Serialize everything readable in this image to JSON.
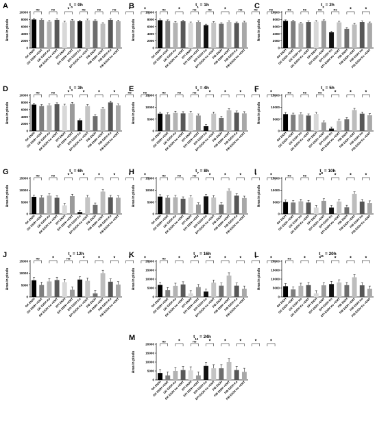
{
  "figure": {
    "y_axis_label": "Area in pixels",
    "category_labels": [
      "GK EtOH",
      "GK EtOH +EMT",
      "GK EtOH Ko",
      "GK EtOH Ko +EMT",
      "EPI EtOH",
      "EPI EtOH +EMT",
      "EPI EtOH Ko",
      "EPI EtOH Ko +EMT",
      "FIB EtOH",
      "FIB EtOH +EMT",
      "FIB EtOH Ko",
      "FIB EtOH Ko +EMT"
    ]
  },
  "chart_data": [
    {
      "type": "bar",
      "panel": "A",
      "title": "t0 = 0h",
      "title_parts": {
        "base": "t",
        "sub": "0",
        "rest": " = 0h"
      },
      "ylabel": "Area in pixels",
      "ylim": [
        0,
        10000
      ],
      "yticks": [
        0,
        2000,
        4000,
        6000,
        8000,
        10000
      ],
      "values": [
        8000,
        7900,
        7400,
        7900,
        7200,
        7700,
        7500,
        7800,
        7600,
        6800,
        7900,
        7500
      ],
      "errors": [
        300,
        300,
        300,
        300,
        300,
        300,
        300,
        300,
        300,
        300,
        300,
        300
      ],
      "annotations": [
        "ns",
        "ns",
        "*",
        "ns",
        "ns",
        "ns",
        "*",
        "*"
      ]
    },
    {
      "type": "bar",
      "panel": "B",
      "title": "t1 = 1h",
      "title_parts": {
        "base": "t",
        "sub": "1",
        "rest": " = 1h"
      },
      "ylabel": "Area in pixels",
      "ylim": [
        0,
        10000
      ],
      "yticks": [
        0,
        2000,
        4000,
        6000,
        8000,
        10000
      ],
      "values": [
        7800,
        7600,
        7100,
        7500,
        7000,
        7300,
        6400,
        7100,
        6800,
        7300,
        7000,
        7200
      ],
      "errors": [
        300,
        300,
        300,
        300,
        300,
        300,
        300,
        300,
        300,
        300,
        300,
        300
      ],
      "annotations": [
        "ns",
        "*",
        "ns",
        "ns",
        "*",
        "ns",
        "ns",
        "ns"
      ]
    },
    {
      "type": "bar",
      "panel": "C",
      "title": "t2 = 2h",
      "title_parts": {
        "base": "t",
        "sub": "2",
        "rest": " = 2h"
      },
      "ylabel": "Area in pixels",
      "ylim": [
        0,
        10000
      ],
      "yticks": [
        0,
        2000,
        4000,
        6000,
        8000,
        10000
      ],
      "values": [
        7600,
        7500,
        6900,
        7300,
        7400,
        7600,
        4400,
        7200,
        5400,
        6600,
        7300,
        7000
      ],
      "errors": [
        300,
        300,
        300,
        300,
        300,
        300,
        300,
        300,
        300,
        300,
        300,
        300
      ],
      "annotations": [
        "ns",
        "ns",
        "ns",
        "ns",
        "*",
        "*",
        "*",
        "ns"
      ]
    },
    {
      "type": "bar",
      "panel": "D",
      "title": "t3 = 3h",
      "title_parts": {
        "base": "t",
        "sub": "3",
        "rest": " = 3h"
      },
      "ylabel": "Area in pixels",
      "ylim": [
        0,
        10000
      ],
      "yticks": [
        0,
        2000,
        4000,
        6000,
        8000,
        10000
      ],
      "values": [
        7400,
        7000,
        7200,
        7500,
        7100,
        7600,
        3000,
        7000,
        4200,
        6200,
        8000,
        7200
      ],
      "errors": [
        400,
        400,
        400,
        400,
        400,
        400,
        400,
        400,
        400,
        400,
        400,
        400
      ],
      "annotations": [
        "ns",
        "ns",
        "*",
        "*",
        "*",
        "*",
        "ns",
        "ns"
      ]
    },
    {
      "type": "bar",
      "panel": "E",
      "title": "t4 = 4h",
      "title_parts": {
        "base": "t",
        "sub": "4",
        "rest": " = 4h"
      },
      "ylabel": "Area in pixels",
      "ylim": [
        0,
        15000
      ],
      "yticks": [
        0,
        5000,
        10000,
        15000
      ],
      "values": [
        7300,
        7000,
        7600,
        7400,
        7500,
        6500,
        2000,
        7300,
        5500,
        8700,
        7700,
        7400
      ],
      "errors": [
        700,
        700,
        700,
        700,
        700,
        700,
        700,
        700,
        700,
        700,
        700,
        700
      ],
      "annotations": [
        "ns",
        "ns",
        "ns",
        "*",
        "*",
        "*",
        "*",
        "*"
      ]
    },
    {
      "type": "bar",
      "panel": "F",
      "title": "t5 = 5h",
      "title_parts": {
        "base": "t",
        "sub": "5",
        "rest": " = 5h"
      },
      "ylabel": "Area in pixels",
      "ylim": [
        0,
        15000
      ],
      "yticks": [
        0,
        5000,
        10000,
        15000
      ],
      "values": [
        7100,
        6800,
        7000,
        6500,
        7200,
        3600,
        1000,
        4200,
        4900,
        8800,
        7300,
        6600
      ],
      "errors": [
        700,
        700,
        700,
        700,
        700,
        700,
        700,
        700,
        700,
        700,
        700,
        700
      ],
      "annotations": [
        "ns",
        "ns",
        "ns",
        "*",
        "*",
        "*",
        "*",
        "*"
      ]
    },
    {
      "type": "bar",
      "panel": "G",
      "title": "t6 = 6h",
      "title_parts": {
        "base": "t",
        "sub": "6",
        "rest": " = 6h"
      },
      "ylabel": "Area in pixels",
      "ylim": [
        0,
        15000
      ],
      "yticks": [
        0,
        5000,
        10000,
        15000
      ],
      "values": [
        7200,
        6900,
        7700,
        6800,
        3600,
        7500,
        800,
        7000,
        3800,
        9400,
        7000,
        6800
      ],
      "errors": [
        800,
        800,
        800,
        800,
        800,
        800,
        800,
        800,
        800,
        800,
        800,
        800
      ],
      "annotations": [
        "ns",
        "ns",
        "*",
        "*",
        "*",
        "*",
        "*",
        "*"
      ]
    },
    {
      "type": "bar",
      "panel": "H",
      "title": "t7 = 8h",
      "title_parts": {
        "base": "t",
        "sub": "7",
        "rest": " = 8h"
      },
      "ylabel": "Area in pixels",
      "ylim": [
        0,
        15000
      ],
      "yticks": [
        0,
        5000,
        10000,
        15000
      ],
      "values": [
        7300,
        6800,
        7000,
        6400,
        6900,
        3900,
        7400,
        6900,
        3900,
        9700,
        7700,
        6700
      ],
      "errors": [
        800,
        800,
        800,
        800,
        800,
        800,
        800,
        800,
        800,
        800,
        800,
        800
      ],
      "annotations": [
        "ns",
        "ns",
        "ns",
        "*",
        "*",
        "*",
        "*",
        "*"
      ]
    },
    {
      "type": "bar",
      "panel": "I",
      "title": "t8 = 10h",
      "title_parts": {
        "base": "t",
        "sub": "8",
        "rest": " = 10h"
      },
      "ylabel": "Area in pixels",
      "ylim": [
        0,
        15000
      ],
      "yticks": [
        0,
        5000,
        10000,
        15000
      ],
      "values": [
        5000,
        4800,
        5300,
        4800,
        2700,
        5500,
        2700,
        5200,
        2800,
        8400,
        5200,
        4600
      ],
      "errors": [
        900,
        900,
        900,
        900,
        900,
        900,
        900,
        900,
        900,
        900,
        900,
        900
      ],
      "annotations": [
        "ns",
        "ns",
        "*",
        "*",
        "*",
        "*",
        "*",
        "*"
      ]
    },
    {
      "type": "bar",
      "panel": "J",
      "title": "t9 = 12h",
      "title_parts": {
        "base": "t",
        "sub": "9",
        "rest": " = 12h"
      },
      "ylabel": "Area in pixels",
      "ylim": [
        0,
        15000
      ],
      "yticks": [
        0,
        5000,
        10000,
        15000
      ],
      "values": [
        7000,
        5000,
        6500,
        7100,
        6200,
        3000,
        7300,
        6800,
        1500,
        10000,
        6400,
        5200
      ],
      "errors": [
        1200,
        1200,
        1200,
        1200,
        1200,
        1200,
        1200,
        1200,
        1200,
        1200,
        1200,
        1200
      ],
      "annotations": [
        "ns",
        "*",
        "ns",
        "*",
        "*",
        "*",
        "*",
        "*"
      ]
    },
    {
      "type": "bar",
      "panel": "K",
      "title": "t10 = 16h",
      "title_parts": {
        "base": "t",
        "sub": "10",
        "rest": " = 16h"
      },
      "ylabel": "Area in pixels",
      "ylim": [
        0,
        20000
      ],
      "yticks": [
        0,
        5000,
        10000,
        15000,
        20000
      ],
      "values": [
        6700,
        3800,
        6200,
        7000,
        2000,
        5500,
        3000,
        8000,
        6300,
        12000,
        6300,
        4600
      ],
      "errors": [
        1500,
        1500,
        1500,
        1500,
        1500,
        1500,
        1500,
        1500,
        1500,
        1500,
        1500,
        1500
      ],
      "annotations": [
        "ns",
        "*",
        "*",
        "*",
        "*",
        "*",
        "*",
        "*"
      ]
    },
    {
      "type": "bar",
      "panel": "L",
      "title": "t11 = 20h",
      "title_parts": {
        "base": "t",
        "sub": "11",
        "rest": " = 20h"
      },
      "ylabel": "Area in pixels",
      "ylim": [
        0,
        20000
      ],
      "yticks": [
        0,
        5000,
        10000,
        15000,
        20000
      ],
      "values": [
        6000,
        4200,
        6200,
        6600,
        2000,
        6500,
        7200,
        8100,
        6600,
        11000,
        6500,
        4600
      ],
      "errors": [
        1500,
        1500,
        1500,
        1500,
        1500,
        1500,
        1500,
        1500,
        1500,
        1500,
        1500,
        1500
      ],
      "annotations": [
        "ns",
        "*",
        "*",
        "*",
        "*",
        "*",
        "*",
        "*"
      ]
    },
    {
      "type": "bar",
      "panel": "M",
      "title": "t12 = 24h",
      "title_parts": {
        "base": "t",
        "sub": "12",
        "rest": " = 24h"
      },
      "ylabel": "Area in pixels",
      "ylim": [
        0,
        20000
      ],
      "yticks": [
        0,
        5000,
        10000,
        15000,
        20000
      ],
      "values": [
        3800,
        2500,
        5000,
        5500,
        5300,
        2500,
        7800,
        6500,
        6500,
        10000,
        5500,
        4500
      ],
      "errors": [
        2000,
        2000,
        2000,
        2000,
        2000,
        2000,
        2000,
        2000,
        2000,
        2000,
        2000,
        2000
      ],
      "annotations": [
        "ns",
        "*",
        "ns",
        "*",
        "*",
        "*",
        "*",
        "*"
      ]
    }
  ],
  "colors": {
    "bars": [
      "#000000",
      "#7f7f7f",
      "#b3b3b3",
      "#595959",
      "#d8d8d8",
      "#9a9a9a",
      "#111111",
      "#c4c4c4",
      "#6e6e6e",
      "#bdbdbd",
      "#575757",
      "#a8a8a8"
    ],
    "axis": "#000000"
  }
}
